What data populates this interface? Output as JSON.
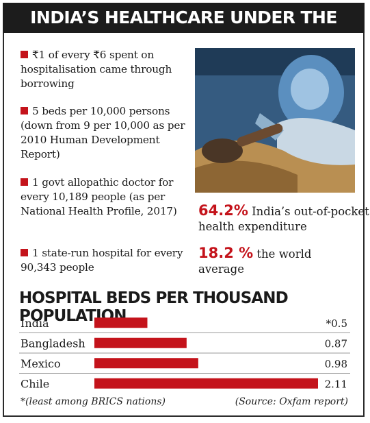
{
  "title": "INDIA’S HEALTHCARE UNDER THE WEATHER",
  "facts": [
    "₹1 of every ₹6 spent on hospitalisation came through borrowing",
    "5 beds per 10,000 persons (down from 9 per 10,000 as per 2010 Human Development Report)",
    "1 govt allopathic doctor for every 10,189 people (as per National Health Profile, 2017)",
    "1 state-run hospital for every 90,343 people"
  ],
  "stats": [
    {
      "value": "64.2%",
      "text": "India’s out-of-pocket health expenditure"
    },
    {
      "value": "18.2 %",
      "text": "the world average"
    }
  ],
  "colors": {
    "accent": "#c4131b",
    "title_bg": "#1c1c1c"
  },
  "chart_data": {
    "type": "bar",
    "orientation": "horizontal",
    "title": "HOSPITAL BEDS PER THOUSAND POPULATION",
    "categories": [
      "India",
      "Bangladesh",
      "Mexico",
      "Chile"
    ],
    "values": [
      0.5,
      0.87,
      0.98,
      2.11
    ],
    "value_labels": [
      "*0.5",
      "0.87",
      "0.98",
      "2.11"
    ],
    "bar_color": "#c4131b",
    "footnote": "*(least among BRICS nations)",
    "source": "(Source: Oxfam report)"
  }
}
